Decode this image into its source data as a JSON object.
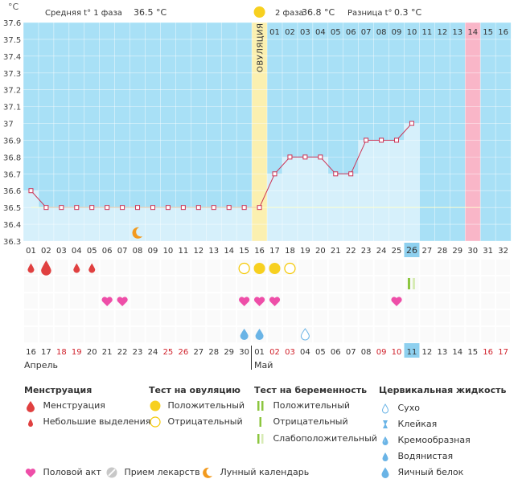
{
  "header": {
    "unit_label": "°C",
    "phase1_label": "Средняя t° 1 фаза",
    "phase1_value": "36.5 °C",
    "phase2_label": "2 фаза",
    "phase2_value": "36.8 °C",
    "diff_label": "Разница t°",
    "diff_value": "0.3 °C",
    "ovulation_label": "ОВУЛЯЦИЯ"
  },
  "colors": {
    "plot_bg": "#a8e0f6",
    "phase1_fill": "#d6f0fb",
    "ovulation": "#fbf0b0",
    "highlight_day": "#f9b6c8",
    "line": "#cc3355",
    "menstruation": "#e04040",
    "ovulation_positive": "#f7d020",
    "ovulation_negative": "#f5c800",
    "heart": "#ee4ea8",
    "moon": "#f29a1e",
    "pregnancy_positive": "#8cc63f",
    "cervical_fluid": "#6ab4e6"
  },
  "chart_data": {
    "type": "line",
    "title": "",
    "ylabel": "°C",
    "ylim": [
      36.3,
      37.6
    ],
    "yticks": [
      "36.3",
      "36.4",
      "36.5",
      "36.6",
      "36.7",
      "36.8",
      "36.9",
      "37",
      "37.1",
      "37.2",
      "37.3",
      "37.4",
      "37.5",
      "37.6"
    ],
    "cycle_days": [
      "01",
      "02",
      "03",
      "04",
      "05",
      "06",
      "07",
      "08",
      "09",
      "10",
      "11",
      "12",
      "13",
      "14",
      "15",
      "16",
      "17",
      "18",
      "19",
      "20",
      "21",
      "22",
      "23",
      "24",
      "25",
      "26",
      "27",
      "28",
      "29",
      "30",
      "31",
      "32"
    ],
    "post_ovulation_days": [
      "01",
      "02",
      "03",
      "04",
      "05",
      "06",
      "07",
      "08",
      "09",
      "10",
      "11",
      "12",
      "13",
      "14",
      "15",
      "16"
    ],
    "temperatures": [
      36.6,
      36.5,
      36.5,
      36.5,
      36.5,
      36.5,
      36.5,
      36.5,
      36.5,
      36.5,
      36.5,
      36.5,
      36.5,
      36.5,
      36.5,
      36.5,
      36.7,
      36.8,
      36.8,
      36.8,
      36.7,
      36.7,
      36.9,
      36.9,
      36.9,
      37.0
    ],
    "ovulation_day": 16,
    "current_day": 26,
    "highlighted_post_day": 14,
    "calendar_dates": [
      "16",
      "17",
      "18",
      "19",
      "20",
      "21",
      "22",
      "23",
      "24",
      "25",
      "26",
      "27",
      "28",
      "29",
      "30",
      "01",
      "02",
      "03",
      "04",
      "05",
      "06",
      "07",
      "08",
      "09",
      "10",
      "11",
      "12",
      "13",
      "14",
      "15",
      "16",
      "17"
    ],
    "red_calendar_dates": [
      3,
      4,
      10,
      11,
      17,
      18,
      24,
      25,
      31,
      32
    ],
    "months": [
      "Апрель",
      "Май"
    ],
    "menstruation_days": [
      {
        "day": 1,
        "size": "small"
      },
      {
        "day": 2,
        "size": "large"
      },
      {
        "day": 4,
        "size": "small"
      },
      {
        "day": 5,
        "size": "small"
      }
    ],
    "ovulation_tests": [
      {
        "day": 15,
        "result": "negative"
      },
      {
        "day": 16,
        "result": "positive"
      },
      {
        "day": 17,
        "result": "positive"
      },
      {
        "day": 18,
        "result": "negative"
      }
    ],
    "pregnancy_tests": [
      {
        "day": 26,
        "result": "weak"
      }
    ],
    "intercourse_days": [
      6,
      7,
      15,
      16,
      17,
      25
    ],
    "cervical_fluid": [
      {
        "day": 15,
        "type": "egg_white"
      },
      {
        "day": 16,
        "type": "egg_white"
      },
      {
        "day": 19,
        "type": "dry"
      }
    ],
    "moon_days": [
      8
    ]
  },
  "legend": {
    "menstruation": {
      "title": "Менструация",
      "items": [
        "Менструация",
        "Небольшие выделения"
      ]
    },
    "ovulation_test": {
      "title": "Тест на овуляцию",
      "items": [
        "Положительный",
        "Отрицательный"
      ]
    },
    "pregnancy_test": {
      "title": "Тест на беременность",
      "items": [
        "Положительный",
        "Отрицательный",
        "Слабоположительный"
      ]
    },
    "cervical": {
      "title": "Цервикальная жидкость",
      "items": [
        "Сухо",
        "Клейкая",
        "Кремообразная",
        "Водянистая",
        "Яичный белок"
      ]
    },
    "other": [
      "Половой акт",
      "Прием лекарств",
      "Лунный календарь"
    ]
  }
}
